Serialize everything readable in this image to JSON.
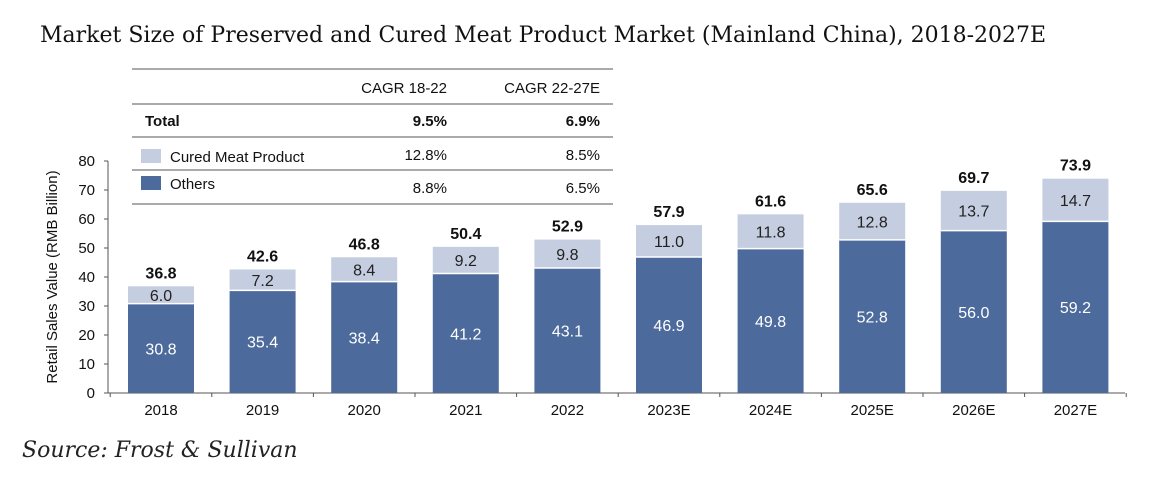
{
  "title": "Market Size of Preserved and Cured Meat Product Market (Mainland China),  2018-2027E",
  "source": "Source: Frost  & Sullivan",
  "table": {
    "headers": [
      "CAGR 18-22",
      "CAGR 22-27E"
    ],
    "rows": [
      {
        "label": "Total",
        "values": [
          "9.5%",
          "6.9%"
        ],
        "bold": true
      },
      {
        "label": "Cured Meat Product",
        "values": [
          "12.8%",
          "8.5%"
        ],
        "color": "#c5cde0"
      },
      {
        "label": "Others",
        "values": [
          "8.8%",
          "6.5%"
        ],
        "color": "#4c6a9b"
      }
    ]
  },
  "chart_data": {
    "type": "bar",
    "stacked": true,
    "categories": [
      "2018",
      "2019",
      "2020",
      "2021",
      "2022",
      "2023E",
      "2024E",
      "2025E",
      "2026E",
      "2027E"
    ],
    "series": [
      {
        "name": "Others",
        "color": "#4c6a9b",
        "values": [
          30.8,
          35.4,
          38.4,
          41.2,
          43.1,
          46.9,
          49.8,
          52.8,
          56.0,
          59.2
        ]
      },
      {
        "name": "Cured Meat Product",
        "color": "#c5cde0",
        "values": [
          6.0,
          7.2,
          8.4,
          9.2,
          9.8,
          11.0,
          11.8,
          12.8,
          13.7,
          14.7
        ]
      }
    ],
    "totals": [
      36.8,
      42.6,
      46.8,
      50.4,
      52.9,
      57.9,
      61.6,
      65.6,
      69.7,
      73.9
    ],
    "ylabel": "Retail Sales Value (RMB Billion)",
    "ylim": [
      0,
      80
    ],
    "yticks": [
      0,
      10,
      20,
      30,
      40,
      50,
      60,
      70,
      80
    ],
    "grid": false,
    "legend": "top-left"
  }
}
